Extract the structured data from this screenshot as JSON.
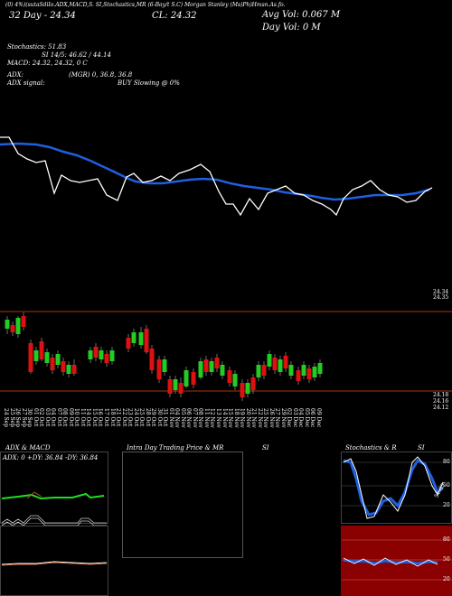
{
  "header": {
    "topline": "(0) 4%)(sutaSdiIo.ADX,MACD,S.     SI,Stochastics,MR     (6-Bay/t S.C)     Morgan Stanley (Ms)Ph)Hmsn.As.fo.",
    "row2_left": "32 Day - 24.34",
    "row2_mid": "CL: 24.32",
    "avg_vol": "Avg Vol: 0.067 M",
    "day_vol": "Day Vol: 0   M",
    "stochastics": "Stochastics: 51.83",
    "si": "SI 14/5: 46.62 / 44.14",
    "macd": "MACD: 24.32, 24.32, 0  C",
    "adx": "ADX:",
    "adx_vals": "(MGR) 0, 36.8,  36.8",
    "adx_signal": "ADX  signal:",
    "buy_signal": "BUY Slowing @ 0%"
  },
  "price_axis": {
    "label_top": "24.34",
    "label_top2": "24.35"
  },
  "candle_axis": {
    "label_a": "24.18",
    "label_b": "24.16",
    "label_c": "24.12"
  },
  "dates": [
    "24 Sep",
    "25 Sep",
    "26 Sep",
    "27 Sep",
    "30 Sep",
    "01 Oct",
    "02 Oct",
    "03 Oct",
    "04 Oct",
    "07 Oct",
    "08 Oct",
    "09 Oct",
    "10 Oct",
    "11 Oct",
    "14 Oct",
    "15 Oct",
    "16 Oct",
    "17 Oct",
    "18 Oct",
    "21 Oct",
    "22 Oct",
    "23 Oct",
    "24 Oct",
    "25 Oct",
    "28 Oct",
    "29 Oct",
    "30 Oct",
    "31 Oct",
    "01 Nov",
    "04 Nov",
    "05 Nov",
    "06 Nov",
    "07 Nov",
    "08 Nov",
    "11 Nov",
    "12 Nov",
    "13 Nov",
    "14 Nov",
    "15 Nov",
    "18 Nov",
    "19 Nov",
    "20 Nov",
    "21 Nov",
    "22 Nov",
    "25 Nov",
    "26 Nov",
    "27 Nov",
    "29 Nov",
    "02 Dec",
    "03 Dec",
    "04 Dec",
    "05 Dec",
    "06 Dec",
    "09 Dec"
  ],
  "panels": {
    "adx_title": "ADX  & MACD",
    "adx_readout": "ADX: 0  +DY: 36.84  -DY: 36.84",
    "intraday_title": "Intra  Day Trading Price  & MR",
    "intraday_si": "SI",
    "stoch_title": "Stochastics & R",
    "stoch_si": "SI",
    "stoch_levels": [
      "80",
      "50",
      "20"
    ],
    "rsi_levels": [
      "80",
      "50",
      "20"
    ],
    "stoch_value_label": "51.83"
  },
  "colors": {
    "background": "#000000",
    "price_line": "#ffffff",
    "ma_line": "#1f5fe0",
    "bull_candle": "#22cc22",
    "bear_candle": "#dd1111",
    "resistance_line": "#aa3311",
    "rsi_panel": "#8b0000",
    "macd_green": "#22dd22",
    "stoch_blue": "#1f5fe0"
  },
  "chart_data": {
    "type": "line",
    "series": [],
    "x": [],
    "ylim": [
      24.12,
      24.34
    ]
  }
}
